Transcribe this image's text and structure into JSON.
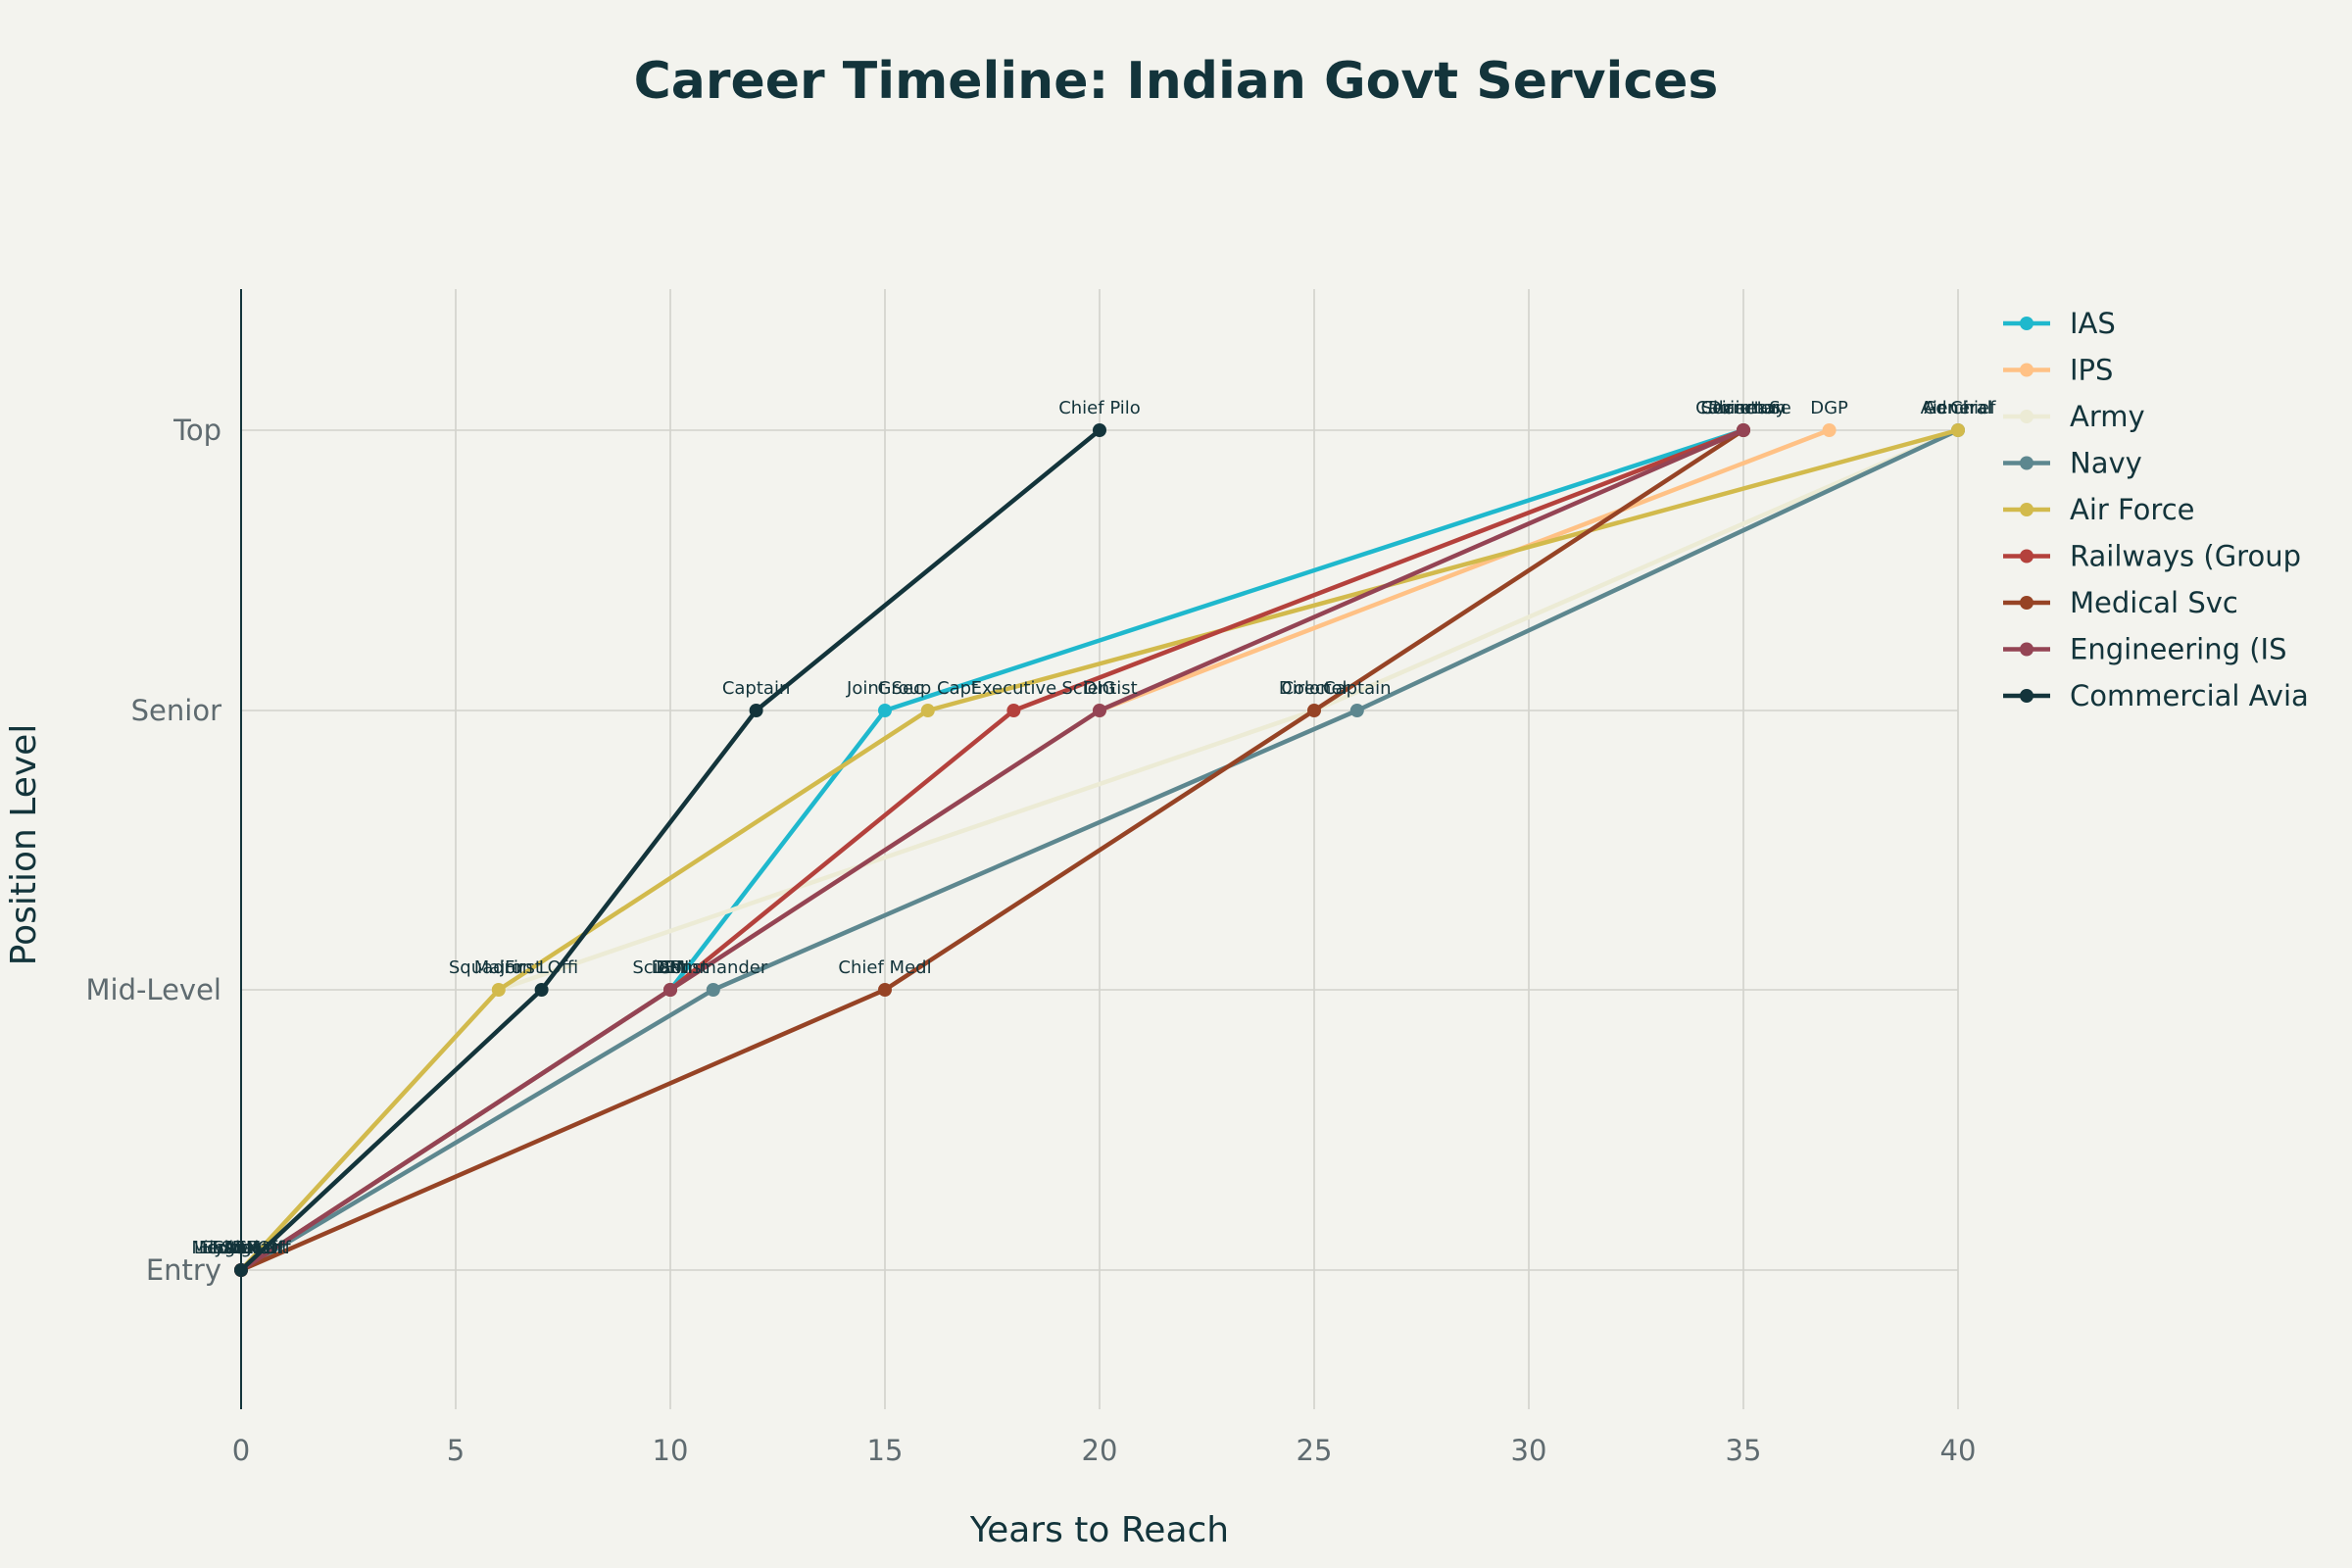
{
  "chart_data": {
    "type": "line",
    "title": "Career Timeline: Indian Govt Services",
    "xlabel": "Years to Reach",
    "ylabel": "Position Level",
    "xlim": [
      0,
      40
    ],
    "x_ticks": [
      0,
      5,
      10,
      15,
      20,
      25,
      30,
      35,
      40
    ],
    "y_categories": [
      "Entry",
      "Mid-Level",
      "Senior",
      "Top"
    ],
    "grid": true,
    "legend_position": "right",
    "series": [
      {
        "name": "IAS",
        "color": "#1fb8cd",
        "points": [
          {
            "x": 0,
            "y": "Entry",
            "label": "SDM"
          },
          {
            "x": 10,
            "y": "Mid-Level",
            "label": "DM"
          },
          {
            "x": 15,
            "y": "Senior",
            "label": "Joint Sec"
          },
          {
            "x": 35,
            "y": "Top",
            "label": "Secretary"
          }
        ]
      },
      {
        "name": "IPS",
        "color": "#ffc185",
        "points": [
          {
            "x": 0,
            "y": "Entry",
            "label": "ASP"
          },
          {
            "x": 10,
            "y": "Mid-Level",
            "label": "SP"
          },
          {
            "x": 20,
            "y": "Senior",
            "label": "DIG"
          },
          {
            "x": 37,
            "y": "Top",
            "label": "DGP"
          }
        ]
      },
      {
        "name": "Army",
        "color": "#ecebd5",
        "points": [
          {
            "x": 0,
            "y": "Entry",
            "label": "Lieutenant"
          },
          {
            "x": 6,
            "y": "Mid-Level",
            "label": "Major"
          },
          {
            "x": 25,
            "y": "Senior",
            "label": "Colonel"
          },
          {
            "x": 40,
            "y": "Top",
            "label": "General"
          }
        ]
      },
      {
        "name": "Navy",
        "color": "#5d878f",
        "points": [
          {
            "x": 0,
            "y": "Entry",
            "label": "Sub Lt"
          },
          {
            "x": 11,
            "y": "Mid-Level",
            "label": "Commander"
          },
          {
            "x": 26,
            "y": "Senior",
            "label": "Captain"
          },
          {
            "x": 40,
            "y": "Top",
            "label": "Admiral"
          }
        ]
      },
      {
        "name": "Air Force",
        "color": "#d2ba4c",
        "points": [
          {
            "x": 0,
            "y": "Entry",
            "label": "Flying Off"
          },
          {
            "x": 6,
            "y": "Mid-Level",
            "label": "Squadron L"
          },
          {
            "x": 16,
            "y": "Senior",
            "label": "Group Capt"
          },
          {
            "x": 40,
            "y": "Top",
            "label": "Air Chief"
          }
        ]
      },
      {
        "name": "Railways (Group",
        "color": "#b4413c",
        "points": [
          {
            "x": 0,
            "y": "Entry",
            "label": "AEN"
          },
          {
            "x": 10,
            "y": "Mid-Level",
            "label": "DEN"
          },
          {
            "x": 18,
            "y": "Senior",
            "label": "Executive"
          },
          {
            "x": 35,
            "y": "Top",
            "label": "Chairman"
          }
        ]
      },
      {
        "name": "Medical Svc",
        "color": "#964325",
        "points": [
          {
            "x": 0,
            "y": "Entry",
            "label": "Medical Off"
          },
          {
            "x": 15,
            "y": "Mid-Level",
            "label": "Chief Medl"
          },
          {
            "x": 25,
            "y": "Senior",
            "label": "Director"
          },
          {
            "x": 35,
            "y": "Top",
            "label": "Director"
          }
        ]
      },
      {
        "name": "Engineering (IS",
        "color": "#944454",
        "points": [
          {
            "x": 0,
            "y": "Entry",
            "label": "Engineer"
          },
          {
            "x": 10,
            "y": "Mid-Level",
            "label": "Scientist"
          },
          {
            "x": 20,
            "y": "Senior",
            "label": "Scientist"
          },
          {
            "x": 35,
            "y": "Top",
            "label": "Cabinet Se"
          }
        ]
      },
      {
        "name": "Commercial Avia",
        "color": "#13343b",
        "points": [
          {
            "x": 0,
            "y": "Entry",
            "label": "Trainee"
          },
          {
            "x": 7,
            "y": "Mid-Level",
            "label": "First Offi"
          },
          {
            "x": 12,
            "y": "Senior",
            "label": "Captain"
          },
          {
            "x": 20,
            "y": "Top",
            "label": "Chief Pilo"
          }
        ]
      }
    ]
  }
}
